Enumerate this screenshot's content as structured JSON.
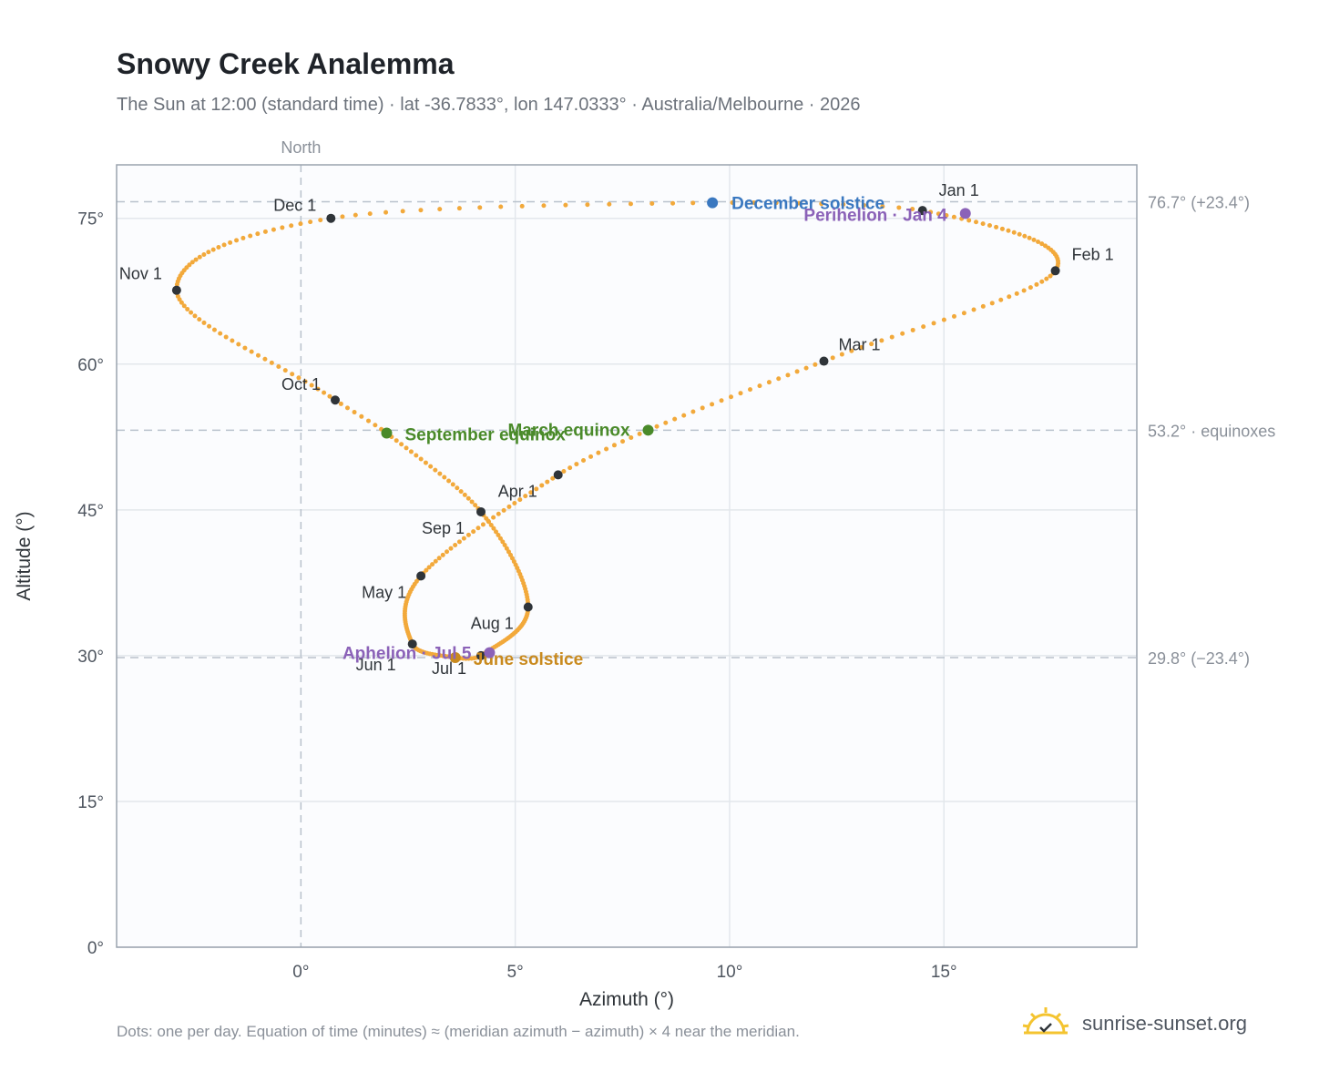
{
  "title": "Snowy Creek Analemma",
  "subtitle": "The Sun at 12:00 (standard time) · lat -36.7833°, lon 147.0333° · Australia/Melbourne · 2026",
  "footnote": "Dots: one per day. Equation of time (minutes) ≈ (meridian azimuth − azimuth) × 4 near the meridian.",
  "brand": {
    "name": "sunrise-sunset.org",
    "icon": "sun-logo-icon"
  },
  "colors": {
    "curve": "#f2a93b",
    "month_marker": "#2f3439",
    "equinox": "#4a8a2a",
    "december_solstice": "#3a78c0",
    "june_solstice": "#c98a1e",
    "apsis": "#8b62b8",
    "grid": "#e3e7ec",
    "reference_line": "#b9c2cc",
    "plot_background": "#fbfcfe",
    "plot_border": "#9aa3ae"
  },
  "chart_data": {
    "type": "scatter",
    "title": "Snowy Creek Analemma",
    "xlabel": "Azimuth (°)",
    "ylabel": "Altitude (°)",
    "xlim": [
      -4.3,
      19.5
    ],
    "ylim": [
      0,
      80.5
    ],
    "x_ticks": [
      0,
      5,
      10,
      15
    ],
    "x_tick_labels": [
      "0°",
      "5°",
      "10°",
      "15°"
    ],
    "y_ticks": [
      0,
      15,
      30,
      45,
      60,
      75
    ],
    "y_tick_labels": [
      "0°",
      "15°",
      "30°",
      "45°",
      "60°",
      "75°"
    ],
    "grid": true,
    "meridian": {
      "x": 0,
      "label": "North"
    },
    "reference_lines": [
      {
        "y": 76.7,
        "label": "76.7° (+23.4°)"
      },
      {
        "y": 53.2,
        "label": "53.2° · equinoxes"
      },
      {
        "y": 29.8,
        "label": "29.8° (−23.4°)"
      }
    ],
    "series": [
      {
        "name": "daily positions",
        "points_per": "day",
        "days": 365,
        "key_points": [
          {
            "day": 0,
            "x": 14.5,
            "y": 75.8
          },
          {
            "day": 31,
            "x": 17.6,
            "y": 69.6
          },
          {
            "day": 59,
            "x": 12.2,
            "y": 60.3
          },
          {
            "day": 78,
            "x": 8.1,
            "y": 53.2
          },
          {
            "day": 90,
            "x": 6.0,
            "y": 48.6
          },
          {
            "day": 120,
            "x": 2.8,
            "y": 38.2
          },
          {
            "day": 151,
            "x": 2.6,
            "y": 31.2
          },
          {
            "day": 171,
            "x": 3.6,
            "y": 29.8
          },
          {
            "day": 181,
            "x": 4.2,
            "y": 30.0
          },
          {
            "day": 212,
            "x": 5.3,
            "y": 35.0
          },
          {
            "day": 243,
            "x": 4.2,
            "y": 44.8
          },
          {
            "day": 265,
            "x": 2.0,
            "y": 52.9
          },
          {
            "day": 273,
            "x": 0.8,
            "y": 56.3
          },
          {
            "day": 304,
            "x": -2.9,
            "y": 67.6
          },
          {
            "day": 334,
            "x": 0.7,
            "y": 75.0
          },
          {
            "day": 354,
            "x": 9.6,
            "y": 76.6
          },
          {
            "day": 365,
            "x": 14.5,
            "y": 75.8
          }
        ]
      }
    ],
    "month_markers": [
      {
        "label": "Jan 1",
        "x": 14.5,
        "y": 75.8
      },
      {
        "label": "Feb 1",
        "x": 17.6,
        "y": 69.6
      },
      {
        "label": "Mar 1",
        "x": 12.2,
        "y": 60.3
      },
      {
        "label": "Apr 1",
        "x": 6.0,
        "y": 48.6
      },
      {
        "label": "May 1",
        "x": 2.8,
        "y": 38.2
      },
      {
        "label": "Jun 1",
        "x": 2.6,
        "y": 31.2
      },
      {
        "label": "Jul 1",
        "x": 4.2,
        "y": 30.0
      },
      {
        "label": "Aug 1",
        "x": 5.3,
        "y": 35.0
      },
      {
        "label": "Sep 1",
        "x": 4.2,
        "y": 44.8
      },
      {
        "label": "Oct 1",
        "x": 0.8,
        "y": 56.3
      },
      {
        "label": "Nov 1",
        "x": -2.9,
        "y": 67.6
      },
      {
        "label": "Dec 1",
        "x": 0.7,
        "y": 75.0
      }
    ],
    "events": [
      {
        "label": "December solstice",
        "x": 9.6,
        "y": 76.6,
        "color_key": "december_solstice"
      },
      {
        "label": "Perihelion · Jan 4",
        "x": 15.5,
        "y": 75.5,
        "color_key": "apsis"
      },
      {
        "label": "March equinox",
        "x": 8.1,
        "y": 53.2,
        "color_key": "equinox"
      },
      {
        "label": "September equinox",
        "x": 2.0,
        "y": 52.9,
        "color_key": "equinox"
      },
      {
        "label": "June solstice",
        "x": 3.6,
        "y": 29.8,
        "color_key": "june_solstice"
      },
      {
        "label": "Aphelion · Jul 5",
        "x": 4.4,
        "y": 30.3,
        "color_key": "apsis"
      }
    ]
  }
}
